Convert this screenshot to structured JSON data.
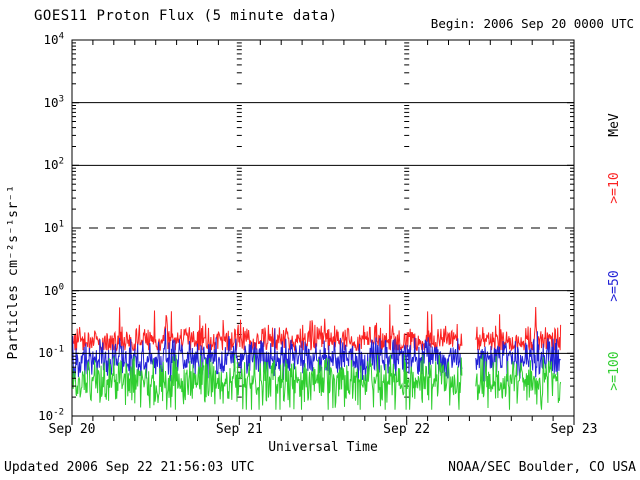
{
  "header": {
    "title": "GOES11 Proton Flux (5 minute data)",
    "begin_label": "Begin: 2006 Sep 20 0000 UTC"
  },
  "footer": {
    "updated": "Updated 2006 Sep 22 21:56:03 UTC",
    "source": "NOAA/SEC Boulder, CO USA"
  },
  "chart_data": {
    "type": "line",
    "title": "GOES11 Proton Flux (5 minute data)",
    "xlabel": "Universal Time",
    "ylabel": "Particles cm⁻²s⁻¹sr⁻¹",
    "right_axis_unit": "MeV",
    "x_ticks": [
      {
        "label": "Sep 20",
        "day": 0
      },
      {
        "label": "Sep 21",
        "day": 1
      },
      {
        "label": "Sep 22",
        "day": 2
      },
      {
        "label": "Sep 23",
        "day": 3
      }
    ],
    "x_range_days": [
      0,
      3
    ],
    "y_log_range": [
      -2,
      4
    ],
    "y_tick_exponents": [
      4,
      3,
      2,
      1,
      0,
      -1,
      -2
    ],
    "grid": {
      "solid_hlines_log10": [
        3,
        2,
        0,
        -1
      ],
      "dashed_hlines_log10": [
        1
      ],
      "day_gridlines_days": [
        1,
        2
      ],
      "minor_tick_hours": 3
    },
    "sampling": {
      "cadence_minutes": 5,
      "samples_per_day": 288,
      "data_start_day": 0,
      "data_end_day": 2.92,
      "gap_days": [
        2.33,
        2.41
      ]
    },
    "series": [
      {
        "name": ">=10 MeV proton flux",
        "label": ">=10",
        "color": "#fb2222",
        "approx_median_flux": 0.16,
        "typical_flux_range": [
          0.11,
          0.4
        ],
        "peak_flux": 0.62,
        "baseline_log10": -0.8,
        "noise_log10": 0.13,
        "up_spike_log10": 0.4,
        "up_spike_prob": 0.05,
        "down_spike_log10": 0.0,
        "down_spike_prob": 0.0,
        "min_log10": -0.95,
        "max_log10": -0.22,
        "notable_spikes": [
          {
            "day": 1.9,
            "log10": -0.21
          }
        ]
      },
      {
        "name": ">=50 MeV proton flux",
        "label": ">=50",
        "color": "#2222d6",
        "approx_median_flux": 0.083,
        "typical_flux_range": [
          0.035,
          0.2
        ],
        "peak_flux": 0.25,
        "baseline_log10": -1.08,
        "noise_log10": 0.17,
        "up_spike_log10": 0.35,
        "up_spike_prob": 0.02,
        "down_spike_log10": 0.2,
        "down_spike_prob": 0.08,
        "min_log10": -1.45,
        "max_log10": -0.6,
        "notable_spikes": []
      },
      {
        "name": ">=100 MeV proton flux",
        "label": ">=100",
        "color": "#2fce2f",
        "approx_median_flux": 0.04,
        "typical_flux_range": [
          0.013,
          0.095
        ],
        "peak_flux": 0.095,
        "baseline_log10": -1.4,
        "noise_log10": 0.2,
        "up_spike_log10": 0.15,
        "up_spike_prob": 0.02,
        "down_spike_log10": 0.35,
        "down_spike_prob": 0.25,
        "min_log10": -1.9,
        "max_log10": -1.02,
        "notable_spikes": []
      }
    ]
  }
}
